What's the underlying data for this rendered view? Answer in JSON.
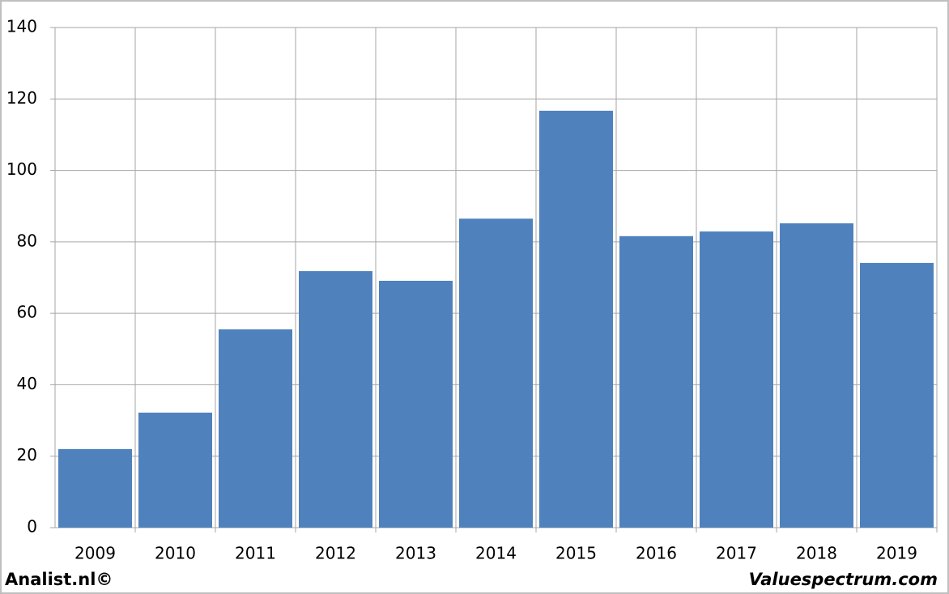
{
  "chart_data": {
    "type": "bar",
    "categories": [
      "2009",
      "2010",
      "2011",
      "2012",
      "2013",
      "2014",
      "2015",
      "2016",
      "2017",
      "2018",
      "2019"
    ],
    "values": [
      22,
      32.2,
      55.5,
      71.8,
      69.1,
      86.5,
      116.7,
      81.6,
      82.9,
      85.2,
      74.1
    ],
    "color": "#4f81bd",
    "ylim": [
      0,
      140
    ],
    "yticks": [
      0,
      20,
      40,
      60,
      80,
      100,
      120,
      140
    ],
    "grid": true,
    "footer_left": "Analist.nl©",
    "footer_right": "Valuespectrum.com"
  }
}
